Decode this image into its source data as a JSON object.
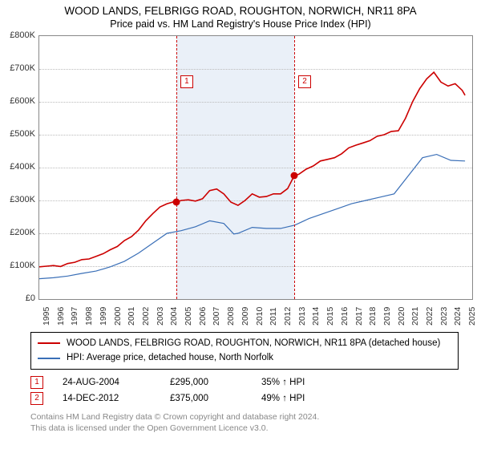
{
  "titles": {
    "line1": "WOOD LANDS, FELBRIGG ROAD, ROUGHTON, NORWICH, NR11 8PA",
    "line2": "Price paid vs. HM Land Registry's House Price Index (HPI)"
  },
  "chart": {
    "type": "line",
    "plot_bg": "#ffffff",
    "grid_color": "#bbbbbb",
    "border_color": "#888888",
    "shade_color": "rgba(180,200,230,0.28)",
    "x": {
      "min": 1995.0,
      "max": 2025.5,
      "ticks": [
        1995,
        1996,
        1997,
        1998,
        1999,
        2000,
        2001,
        2002,
        2003,
        2004,
        2005,
        2006,
        2007,
        2008,
        2009,
        2010,
        2011,
        2012,
        2013,
        2014,
        2015,
        2016,
        2017,
        2018,
        2019,
        2020,
        2021,
        2022,
        2023,
        2024,
        2025
      ],
      "label_fontsize": 10.5
    },
    "y": {
      "min": 0,
      "max": 800000,
      "tick_step": 100000,
      "tick_prefix": "£",
      "tick_suffix": "K",
      "label_fontsize": 11
    },
    "series": [
      {
        "name": "WOOD LANDS, FELBRIGG ROAD, ROUGHTON, NORWICH, NR11 8PA (detached house)",
        "color": "#cc0000",
        "line_width": 1.6,
        "x": [
          1995.0,
          1995.5,
          1996.0,
          1996.5,
          1997.0,
          1997.5,
          1998.0,
          1998.5,
          1999.0,
          1999.5,
          2000.0,
          2000.5,
          2001.0,
          2001.5,
          2002.0,
          2002.5,
          2003.0,
          2003.5,
          2004.0,
          2004.5,
          2004.65,
          2005.0,
          2005.5,
          2006.0,
          2006.5,
          2007.0,
          2007.5,
          2008.0,
          2008.5,
          2009.0,
          2009.5,
          2010.0,
          2010.5,
          2011.0,
          2011.5,
          2012.0,
          2012.5,
          2012.96,
          2013.3,
          2013.8,
          2014.3,
          2014.8,
          2015.3,
          2015.8,
          2016.3,
          2016.8,
          2017.3,
          2017.8,
          2018.3,
          2018.8,
          2019.3,
          2019.8,
          2020.3,
          2020.8,
          2021.3,
          2021.8,
          2022.3,
          2022.8,
          2023.3,
          2023.8,
          2024.3,
          2024.8,
          2025.0
        ],
        "y": [
          98000,
          100000,
          102000,
          99000,
          108000,
          112000,
          120000,
          122000,
          130000,
          138000,
          150000,
          160000,
          178000,
          190000,
          210000,
          238000,
          260000,
          280000,
          290000,
          296000,
          295000,
          300000,
          302000,
          298000,
          305000,
          330000,
          335000,
          320000,
          295000,
          285000,
          300000,
          320000,
          310000,
          312000,
          320000,
          320000,
          336000,
          375000,
          380000,
          395000,
          405000,
          420000,
          425000,
          430000,
          442000,
          460000,
          468000,
          475000,
          482000,
          495000,
          500000,
          510000,
          512000,
          550000,
          600000,
          640000,
          670000,
          690000,
          660000,
          648000,
          655000,
          635000,
          620000
        ]
      },
      {
        "name": "HPI: Average price, detached house, North Norfolk",
        "color": "#3a6fb7",
        "line_width": 1.2,
        "x": [
          1995.0,
          1996.0,
          1997.0,
          1998.0,
          1999.0,
          2000.0,
          2001.0,
          2002.0,
          2003.0,
          2004.0,
          2005.0,
          2006.0,
          2007.0,
          2008.0,
          2008.7,
          2009.0,
          2010.0,
          2011.0,
          2012.0,
          2013.0,
          2014.0,
          2015.0,
          2016.0,
          2017.0,
          2018.0,
          2019.0,
          2020.0,
          2021.0,
          2022.0,
          2023.0,
          2024.0,
          2025.0
        ],
        "y": [
          62000,
          65000,
          70000,
          78000,
          85000,
          98000,
          115000,
          140000,
          170000,
          200000,
          208000,
          220000,
          238000,
          230000,
          198000,
          200000,
          218000,
          215000,
          215000,
          225000,
          245000,
          260000,
          275000,
          290000,
          300000,
          310000,
          320000,
          375000,
          430000,
          440000,
          422000,
          420000
        ]
      }
    ],
    "shade_range": {
      "x0": 2004.65,
      "x1": 2012.96
    },
    "markers": [
      {
        "label": "1",
        "x": 2004.65,
        "y": 295000,
        "badge_y": 680000
      },
      {
        "label": "2",
        "x": 2012.96,
        "y": 375000,
        "badge_y": 680000
      }
    ]
  },
  "legend_items": [
    {
      "color": "#cc0000",
      "label": "WOOD LANDS, FELBRIGG ROAD, ROUGHTON, NORWICH, NR11 8PA (detached house)"
    },
    {
      "color": "#3a6fb7",
      "label": "HPI: Average price, detached house, North Norfolk"
    }
  ],
  "transactions": [
    {
      "num": "1",
      "date": "24-AUG-2004",
      "price": "£295,000",
      "diff": "35% ↑ HPI"
    },
    {
      "num": "2",
      "date": "14-DEC-2012",
      "price": "£375,000",
      "diff": "49% ↑ HPI"
    }
  ],
  "footer": {
    "l1": "Contains HM Land Registry data © Crown copyright and database right 2024.",
    "l2": "This data is licensed under the Open Government Licence v3.0."
  }
}
